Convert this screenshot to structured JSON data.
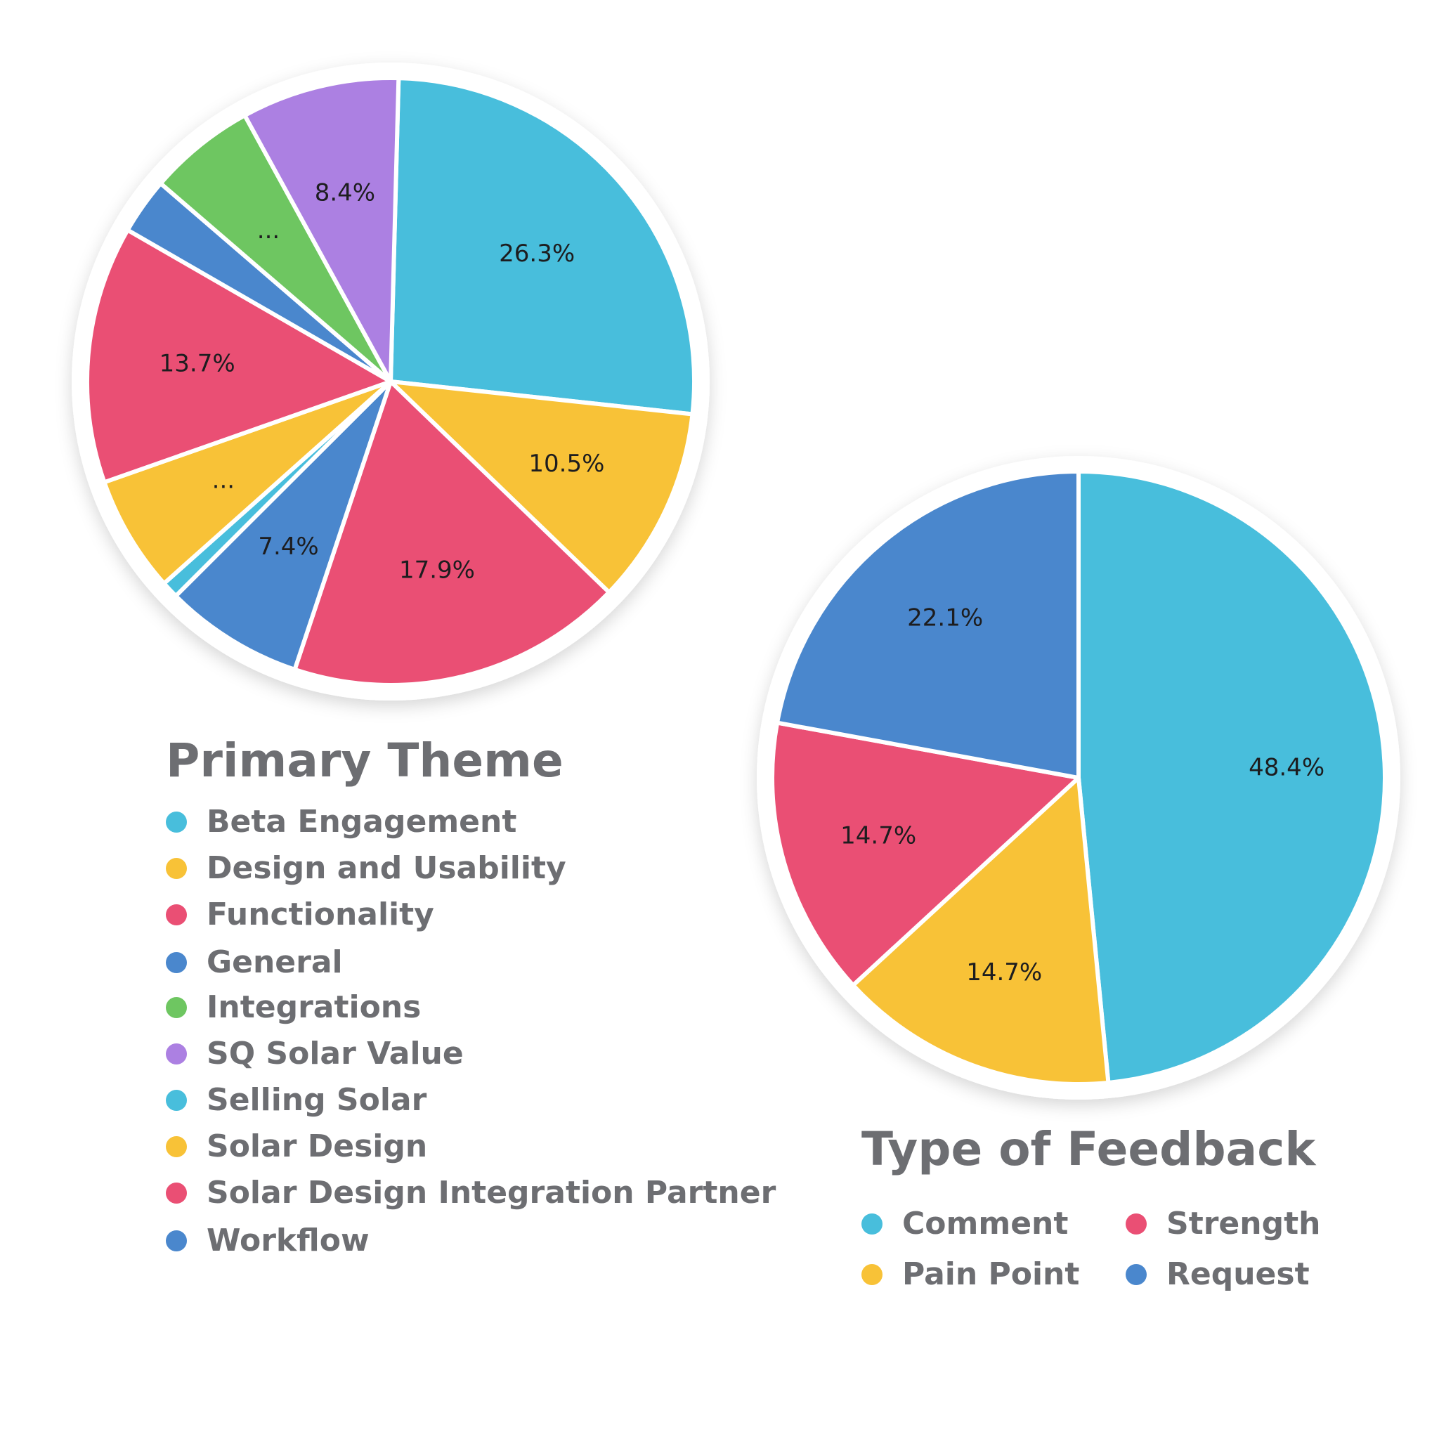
{
  "colors": {
    "cyan": "#48bedc",
    "yellow": "#f8c237",
    "pink": "#ea4f74",
    "blue": "#4a87cd",
    "green": "#6ec661",
    "purple": "#ac80e2"
  },
  "chart_data": [
    {
      "type": "pie",
      "title": "Primary Theme",
      "legend_position": "bottom",
      "slices": [
        {
          "name": "Beta Engagement",
          "value": 26.3,
          "label": "26.3%",
          "color": "#48bedc"
        },
        {
          "name": "Design and Usability",
          "value": 10.5,
          "label": "10.5%",
          "color": "#f8c237"
        },
        {
          "name": "Functionality",
          "value": 17.9,
          "label": "17.9%",
          "color": "#ea4f74"
        },
        {
          "name": "General",
          "value": 7.4,
          "label": "7.4%",
          "color": "#4a87cd"
        },
        {
          "name": "Selling Solar",
          "value": 0.9,
          "label": "",
          "color": "#48bedc"
        },
        {
          "name": "Solar Design",
          "value": 6.2,
          "label": "...",
          "color": "#f8c237"
        },
        {
          "name": "Solar Design Integration Partner",
          "value": 13.7,
          "label": "13.7%",
          "color": "#ea4f74"
        },
        {
          "name": "Workflow",
          "value": 3.0,
          "label": "",
          "color": "#4a87cd"
        },
        {
          "name": "Integrations",
          "value": 5.7,
          "label": "...",
          "color": "#6ec661"
        },
        {
          "name": "SQ Solar Value",
          "value": 8.4,
          "label": "8.4%",
          "color": "#ac80e2"
        }
      ],
      "legend": [
        {
          "name": "Beta Engagement",
          "color": "#48bedc"
        },
        {
          "name": "Design and Usability",
          "color": "#f8c237"
        },
        {
          "name": "Functionality",
          "color": "#ea4f74"
        },
        {
          "name": "General",
          "color": "#4a87cd"
        },
        {
          "name": "Integrations",
          "color": "#6ec661"
        },
        {
          "name": "SQ Solar Value",
          "color": "#ac80e2"
        },
        {
          "name": "Selling Solar",
          "color": "#48bedc"
        },
        {
          "name": "Solar Design",
          "color": "#f8c237"
        },
        {
          "name": "Solar Design Integration Partner",
          "color": "#ea4f74"
        },
        {
          "name": "Workflow",
          "color": "#4a87cd"
        }
      ]
    },
    {
      "type": "pie",
      "title": "Type of Feedback",
      "legend_position": "bottom",
      "slices": [
        {
          "name": "Comment",
          "value": 48.4,
          "label": "48.4%",
          "color": "#48bedc"
        },
        {
          "name": "Pain Point",
          "value": 14.7,
          "label": "14.7%",
          "color": "#f8c237"
        },
        {
          "name": "Strength",
          "value": 14.7,
          "label": "14.7%",
          "color": "#ea4f74"
        },
        {
          "name": "Request",
          "value": 22.1,
          "label": "22.1%",
          "color": "#4a87cd"
        }
      ],
      "legend": [
        {
          "name": "Comment",
          "color": "#48bedc"
        },
        {
          "name": "Strength",
          "color": "#ea4f74"
        },
        {
          "name": "Pain Point",
          "color": "#f8c237"
        },
        {
          "name": "Request",
          "color": "#4a87cd"
        }
      ]
    }
  ]
}
